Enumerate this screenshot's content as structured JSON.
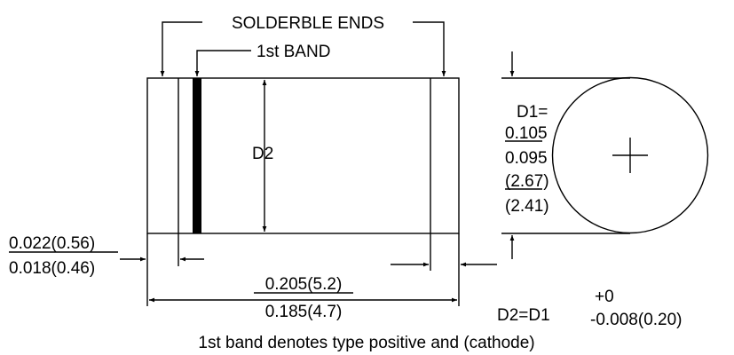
{
  "labels": {
    "solderable_ends": "SOLDERBLE ENDS",
    "first_band": "1st BAND",
    "d2": "D2"
  },
  "d1": {
    "label": "D1=",
    "max_in": "0.105",
    "min_in": "0.095",
    "max_mm": "(2.67)",
    "min_mm": "(2.41)"
  },
  "end_width": {
    "max": "0.022(0.56)",
    "min": "0.018(0.46)"
  },
  "length": {
    "max": "0.205(5.2)",
    "min": "0.185(4.7)"
  },
  "d2_formula": {
    "base": "D2=D1",
    "upper": "+0",
    "lower": "-0.008(0.20)"
  },
  "caption": "1st band denotes type positive and (cathode)"
}
